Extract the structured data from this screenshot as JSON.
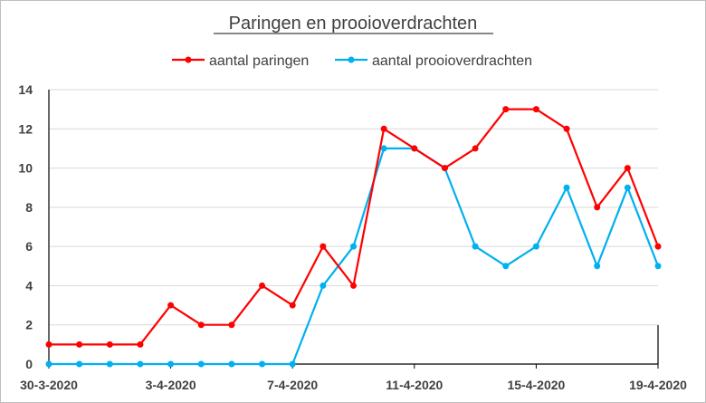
{
  "chart_data": {
    "type": "line",
    "title": "Paringen en prooioverdrachten",
    "xlabel": "",
    "ylabel": "",
    "ylim": [
      0,
      14
    ],
    "yticks": [
      "0",
      "2",
      "4",
      "6",
      "8",
      "10",
      "12",
      "14"
    ],
    "xtick_labels": [
      "30-3-2020",
      "3-4-2020",
      "7-4-2020",
      "11-4-2020",
      "15-4-2020",
      "19-4-2020"
    ],
    "x": [
      "30-3-2020",
      "31-3-2020",
      "1-4-2020",
      "2-4-2020",
      "3-4-2020",
      "4-4-2020",
      "5-4-2020",
      "6-4-2020",
      "7-4-2020",
      "8-4-2020",
      "9-4-2020",
      "10-4-2020",
      "11-4-2020",
      "12-4-2020",
      "13-4-2020",
      "14-4-2020",
      "15-4-2020",
      "16-4-2020",
      "17-4-2020",
      "18-4-2020",
      "19-4-2020"
    ],
    "grid": "horizontal",
    "legend_position": "top",
    "series": [
      {
        "name": "aantal paringen",
        "color": "#ff0000",
        "values": [
          1,
          1,
          1,
          1,
          3,
          2,
          2,
          4,
          3,
          6,
          4,
          12,
          11,
          10,
          11,
          13,
          13,
          12,
          8,
          10,
          6
        ]
      },
      {
        "name": "aantal prooioverdrachten",
        "color": "#00b0f0",
        "values": [
          0,
          0,
          0,
          0,
          0,
          0,
          0,
          0,
          0,
          4,
          6,
          11,
          11,
          10,
          6,
          5,
          6,
          9,
          5,
          9,
          5
        ]
      }
    ]
  }
}
